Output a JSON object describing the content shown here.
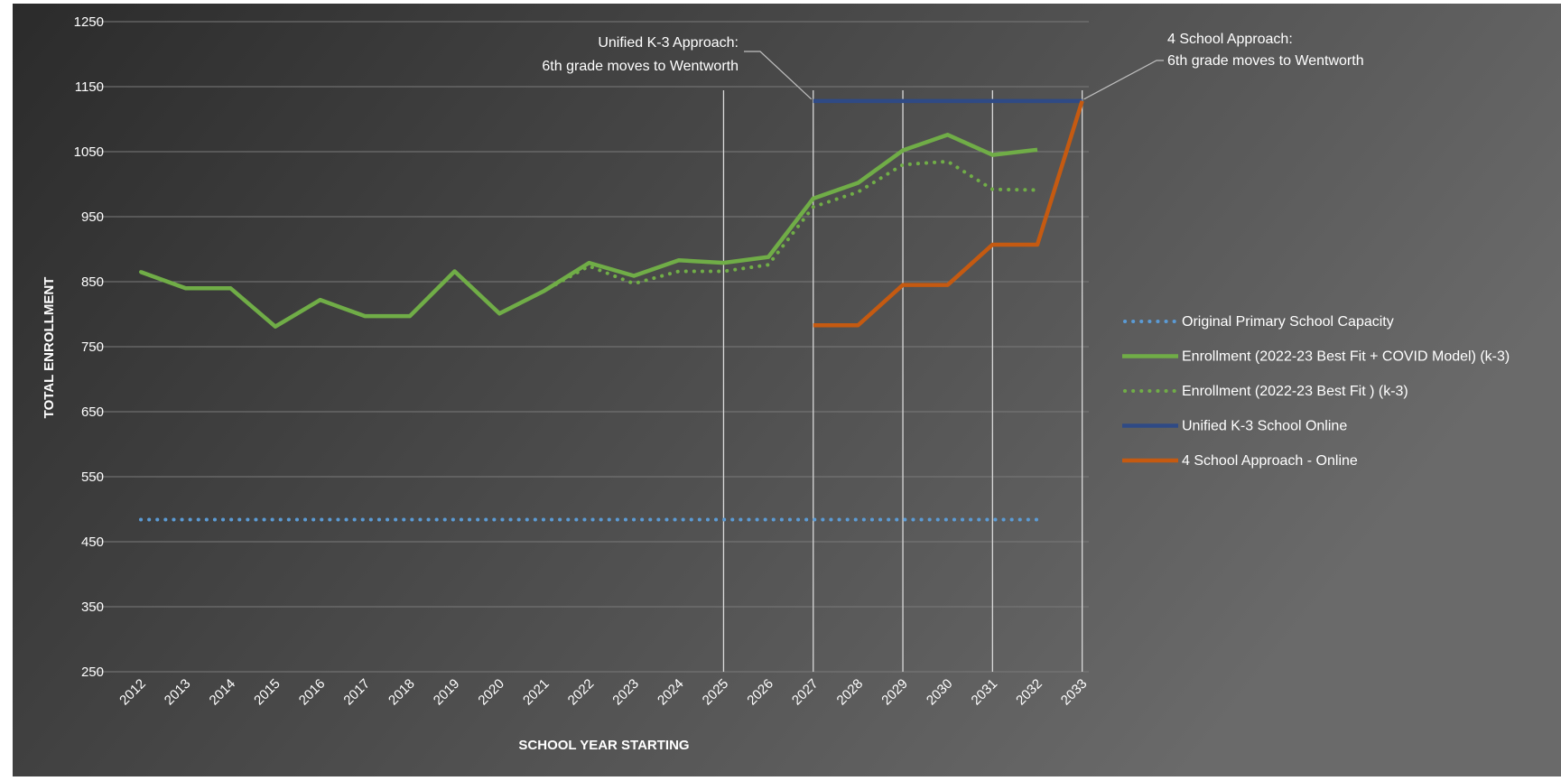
{
  "chart_data": {
    "type": "line",
    "xlabel": "SCHOOL YEAR STARTING",
    "ylabel": "TOTAL ENROLLMENT",
    "ylim": [
      250,
      1250
    ],
    "yticks": [
      250,
      350,
      450,
      550,
      650,
      750,
      850,
      950,
      1050,
      1150,
      1250
    ],
    "x": [
      "2012",
      "2013",
      "2014",
      "2015",
      "2016",
      "2017",
      "2018",
      "2019",
      "2020",
      "2021",
      "2022",
      "2023",
      "2024",
      "2025",
      "2026",
      "2027",
      "2028",
      "2029",
      "2030",
      "2031",
      "2032",
      "2033"
    ],
    "grid": "horizontal",
    "legend_position": "right",
    "background": {
      "from": "#2b2b2b",
      "to": "#6a6a6a"
    },
    "series": [
      {
        "name": "Original Primary School Capacity",
        "color": "#5b9bd5",
        "style": "dotted",
        "values": [
          484,
          484,
          484,
          484,
          484,
          484,
          484,
          484,
          484,
          484,
          484,
          484,
          484,
          484,
          484,
          484,
          484,
          484,
          484,
          484,
          484,
          null
        ]
      },
      {
        "name": "Enrollment (2022-23 Best Fit + COVID Model) (k-3)",
        "color": "#70ad47",
        "style": "solid",
        "values": [
          865,
          840,
          840,
          781,
          822,
          797,
          797,
          866,
          801,
          836,
          879,
          859,
          883,
          879,
          888,
          978,
          1002,
          1052,
          1076,
          1045,
          1053,
          null
        ]
      },
      {
        "name": "Enrollment (2022-23 Best Fit ) (k-3)",
        "color": "#70ad47",
        "style": "dotted",
        "values": [
          865,
          840,
          840,
          781,
          822,
          797,
          797,
          866,
          801,
          836,
          874,
          847,
          866,
          866,
          876,
          965,
          988,
          1030,
          1035,
          992,
          991,
          null
        ]
      },
      {
        "name": "Unified K-3 School Online",
        "color": "#2f4a85",
        "style": "solid",
        "values": [
          null,
          null,
          null,
          null,
          null,
          null,
          null,
          null,
          null,
          null,
          null,
          null,
          null,
          null,
          null,
          1128,
          1128,
          1128,
          1128,
          1128,
          1128,
          1128
        ]
      },
      {
        "name": "4 School Approach - Online",
        "color": "#c55a11",
        "style": "solid",
        "values": [
          null,
          null,
          null,
          null,
          null,
          null,
          null,
          null,
          null,
          null,
          null,
          null,
          null,
          null,
          null,
          783,
          783,
          845,
          845,
          907,
          907,
          1128
        ]
      }
    ],
    "vertical_markers": [
      "2025",
      "2027",
      "2029",
      "2031",
      "2033"
    ],
    "annotations": [
      {
        "lines": [
          "Unified K-3 Approach:",
          "6th grade moves to Wentworth"
        ],
        "target_x": "2027",
        "target_y": 1128
      },
      {
        "lines": [
          "4 School Approach:",
          "6th grade moves to Wentworth"
        ],
        "target_x": "2033",
        "target_y": 1128
      }
    ]
  }
}
